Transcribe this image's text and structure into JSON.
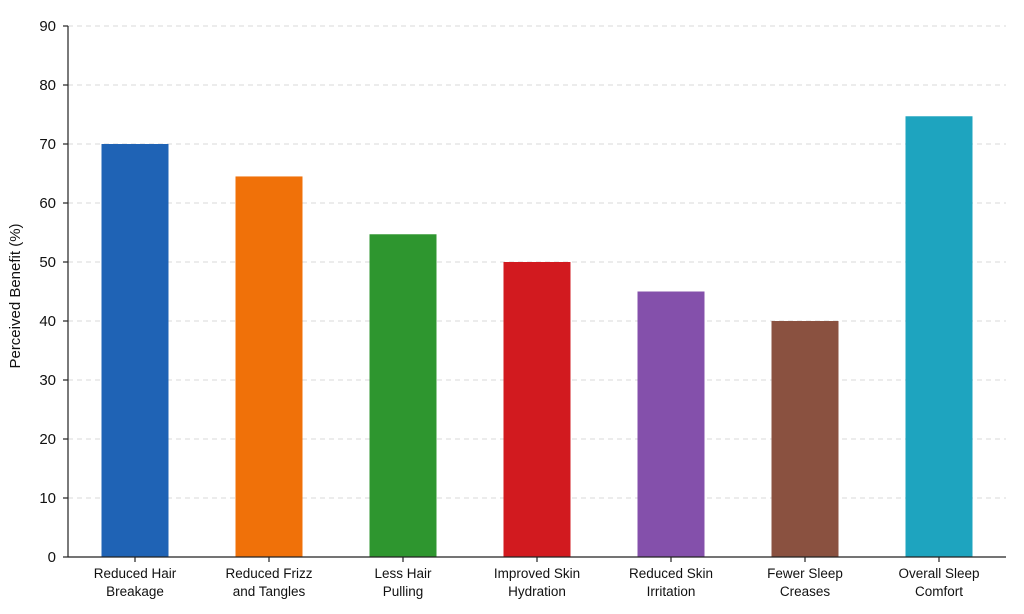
{
  "chart_data": {
    "type": "bar",
    "title": "",
    "xlabel": "",
    "ylabel": "Perceived Benefit (%)",
    "ylim": [
      0,
      90
    ],
    "yticks": [
      0,
      10,
      20,
      30,
      40,
      50,
      60,
      70,
      80,
      90
    ],
    "grid": true,
    "legend": "none",
    "categories": [
      [
        "Reduced Hair",
        "Breakage"
      ],
      [
        "Reduced Frizz",
        "and Tangles"
      ],
      [
        "Less Hair",
        "Pulling"
      ],
      [
        "Improved Skin",
        "Hydration"
      ],
      [
        "Reduced Skin",
        "Irritation"
      ],
      [
        "Fewer Sleep",
        "Creases"
      ],
      [
        "Overall Sleep",
        "Comfort"
      ]
    ],
    "values": [
      70,
      64.5,
      54.7,
      50,
      45,
      40,
      74.7
    ],
    "colors": [
      "#1f63b5",
      "#f07109",
      "#2e962f",
      "#d21a1f",
      "#8450ab",
      "#8a5140",
      "#1ea4bf"
    ]
  }
}
